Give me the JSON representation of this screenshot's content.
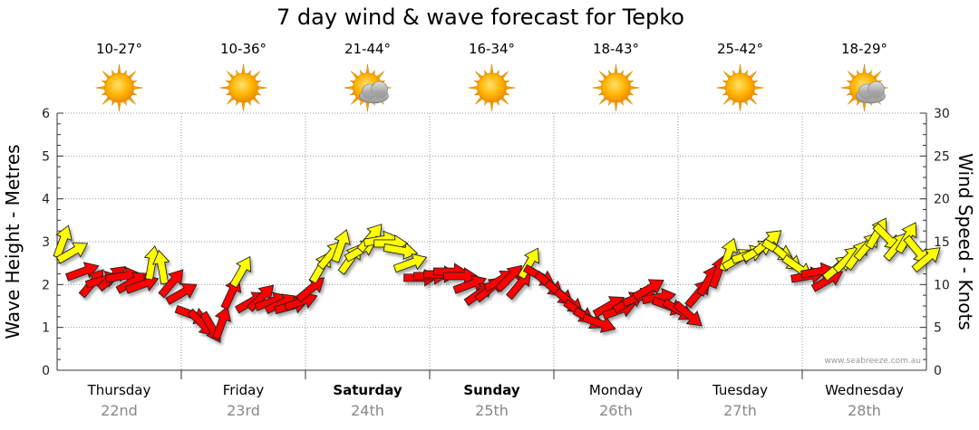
{
  "chart_data": {
    "type": "line",
    "title": "7 day wind & wave forecast for Tepko",
    "ylabel_left": "Wave Height - Metres",
    "ylabel_right": "Wind Speed - Knots",
    "ylim_left": [
      0,
      6
    ],
    "ylim_right": [
      0,
      30
    ],
    "yticks_left": [
      "0",
      "1",
      "2",
      "3",
      "4",
      "5",
      "6"
    ],
    "yticks_right": [
      "0",
      "5",
      "10",
      "15",
      "20",
      "25",
      "30"
    ],
    "credit": "www.seabreeze.com.au",
    "days": [
      {
        "name": "Thursday",
        "date": "22nd",
        "temp": "10-27°",
        "weather": "sunny",
        "bold": false
      },
      {
        "name": "Friday",
        "date": "23rd",
        "temp": "10-36°",
        "weather": "sunny",
        "bold": false
      },
      {
        "name": "Saturday",
        "date": "24th",
        "temp": "21-44°",
        "weather": "partly-cloudy",
        "bold": true
      },
      {
        "name": "Sunday",
        "date": "25th",
        "temp": "16-34°",
        "weather": "sunny",
        "bold": true
      },
      {
        "name": "Monday",
        "date": "26th",
        "temp": "18-43°",
        "weather": "sunny",
        "bold": false
      },
      {
        "name": "Tuesday",
        "date": "27th",
        "temp": "25-42°",
        "weather": "sunny",
        "bold": false
      },
      {
        "name": "Wednesday",
        "date": "28th",
        "temp": "18-29°",
        "weather": "partly-cloudy",
        "bold": false
      }
    ],
    "wind_series": {
      "name": "Wind Speed",
      "unit": "knots",
      "points": [
        {
          "day": 0.0,
          "knots": 15.0,
          "dir": 20,
          "color": "yellow"
        },
        {
          "day": 0.08,
          "knots": 13.8,
          "dir": 60,
          "color": "yellow"
        },
        {
          "day": 0.16,
          "knots": 11.5,
          "dir": 70,
          "color": "red"
        },
        {
          "day": 0.24,
          "knots": 10.2,
          "dir": 40,
          "color": "red"
        },
        {
          "day": 0.32,
          "knots": 10.5,
          "dir": 75,
          "color": "red"
        },
        {
          "day": 0.4,
          "knots": 10.8,
          "dir": 50,
          "color": "red"
        },
        {
          "day": 0.48,
          "knots": 11.0,
          "dir": 80,
          "color": "red"
        },
        {
          "day": 0.56,
          "knots": 10.3,
          "dir": 60,
          "color": "red"
        },
        {
          "day": 0.64,
          "knots": 10.0,
          "dir": 70,
          "color": "red"
        },
        {
          "day": 0.72,
          "knots": 12.5,
          "dir": 10,
          "color": "yellow"
        },
        {
          "day": 0.8,
          "knots": 12.0,
          "dir": 350,
          "color": "yellow"
        },
        {
          "day": 0.88,
          "knots": 10.2,
          "dir": 40,
          "color": "red"
        },
        {
          "day": 0.96,
          "knots": 9.0,
          "dir": 60,
          "color": "red"
        },
        {
          "day": 1.04,
          "knots": 6.5,
          "dir": 110,
          "color": "red"
        },
        {
          "day": 1.12,
          "knots": 5.5,
          "dir": 135,
          "color": "red"
        },
        {
          "day": 1.2,
          "knots": 5.0,
          "dir": 150,
          "color": "red"
        },
        {
          "day": 1.28,
          "knots": 5.5,
          "dir": 20,
          "color": "red"
        },
        {
          "day": 1.36,
          "knots": 9.0,
          "dir": 25,
          "color": "red"
        },
        {
          "day": 1.44,
          "knots": 11.5,
          "dir": 30,
          "color": "yellow"
        },
        {
          "day": 1.52,
          "knots": 8.0,
          "dir": 60,
          "color": "red"
        },
        {
          "day": 1.6,
          "knots": 8.5,
          "dir": 45,
          "color": "red"
        },
        {
          "day": 1.68,
          "knots": 8.0,
          "dir": 70,
          "color": "red"
        },
        {
          "day": 1.76,
          "knots": 7.8,
          "dir": 65,
          "color": "red"
        },
        {
          "day": 1.84,
          "knots": 7.5,
          "dir": 75,
          "color": "red"
        },
        {
          "day": 1.92,
          "knots": 8.0,
          "dir": 70,
          "color": "red"
        },
        {
          "day": 2.0,
          "knots": 9.5,
          "dir": 50,
          "color": "red"
        },
        {
          "day": 2.08,
          "knots": 12.0,
          "dir": 30,
          "color": "yellow"
        },
        {
          "day": 2.16,
          "knots": 13.5,
          "dir": 40,
          "color": "yellow"
        },
        {
          "day": 2.24,
          "knots": 14.5,
          "dir": 20,
          "color": "yellow"
        },
        {
          "day": 2.32,
          "knots": 13.0,
          "dir": 35,
          "color": "yellow"
        },
        {
          "day": 2.4,
          "knots": 14.0,
          "dir": 60,
          "color": "yellow"
        },
        {
          "day": 2.48,
          "knots": 15.5,
          "dir": 40,
          "color": "yellow"
        },
        {
          "day": 2.56,
          "knots": 15.2,
          "dir": 80,
          "color": "yellow"
        },
        {
          "day": 2.64,
          "knots": 14.8,
          "dir": 90,
          "color": "yellow"
        },
        {
          "day": 2.72,
          "knots": 14.0,
          "dir": 100,
          "color": "yellow"
        },
        {
          "day": 2.8,
          "knots": 12.5,
          "dir": 70,
          "color": "yellow"
        },
        {
          "day": 2.88,
          "knots": 10.8,
          "dir": 90,
          "color": "red"
        },
        {
          "day": 2.96,
          "knots": 11.0,
          "dir": 90,
          "color": "red"
        },
        {
          "day": 3.04,
          "knots": 11.2,
          "dir": 90,
          "color": "red"
        },
        {
          "day": 3.12,
          "knots": 11.5,
          "dir": 90,
          "color": "red"
        },
        {
          "day": 3.2,
          "knots": 11.0,
          "dir": 90,
          "color": "red"
        },
        {
          "day": 3.28,
          "knots": 10.0,
          "dir": 70,
          "color": "red"
        },
        {
          "day": 3.36,
          "knots": 9.0,
          "dir": 55,
          "color": "red"
        },
        {
          "day": 3.44,
          "knots": 9.5,
          "dir": 50,
          "color": "red"
        },
        {
          "day": 3.52,
          "knots": 10.5,
          "dir": 60,
          "color": "red"
        },
        {
          "day": 3.6,
          "knots": 10.8,
          "dir": 45,
          "color": "red"
        },
        {
          "day": 3.68,
          "knots": 10.0,
          "dir": 40,
          "color": "red"
        },
        {
          "day": 3.76,
          "knots": 12.5,
          "dir": 30,
          "color": "yellow"
        },
        {
          "day": 3.84,
          "knots": 11.0,
          "dir": 120,
          "color": "red"
        },
        {
          "day": 3.92,
          "knots": 10.0,
          "dir": 130,
          "color": "red"
        },
        {
          "day": 4.0,
          "knots": 9.0,
          "dir": 130,
          "color": "red"
        },
        {
          "day": 4.08,
          "knots": 8.0,
          "dir": 130,
          "color": "red"
        },
        {
          "day": 4.16,
          "knots": 6.8,
          "dir": 125,
          "color": "red"
        },
        {
          "day": 4.24,
          "knots": 6.0,
          "dir": 120,
          "color": "red"
        },
        {
          "day": 4.32,
          "knots": 5.5,
          "dir": 110,
          "color": "red"
        },
        {
          "day": 4.4,
          "knots": 7.5,
          "dir": 60,
          "color": "red"
        },
        {
          "day": 4.48,
          "knots": 7.0,
          "dir": 70,
          "color": "red"
        },
        {
          "day": 4.56,
          "knots": 8.0,
          "dir": 60,
          "color": "red"
        },
        {
          "day": 4.64,
          "knots": 8.5,
          "dir": 70,
          "color": "red"
        },
        {
          "day": 4.72,
          "knots": 9.5,
          "dir": 60,
          "color": "red"
        },
        {
          "day": 4.8,
          "knots": 8.5,
          "dir": 80,
          "color": "red"
        },
        {
          "day": 4.88,
          "knots": 7.5,
          "dir": 110,
          "color": "red"
        },
        {
          "day": 4.96,
          "knots": 7.0,
          "dir": 120,
          "color": "red"
        },
        {
          "day": 5.04,
          "knots": 6.5,
          "dir": 130,
          "color": "red"
        },
        {
          "day": 5.12,
          "knots": 9.0,
          "dir": 40,
          "color": "red"
        },
        {
          "day": 5.2,
          "knots": 10.5,
          "dir": 30,
          "color": "red"
        },
        {
          "day": 5.28,
          "knots": 11.5,
          "dir": 20,
          "color": "red"
        },
        {
          "day": 5.36,
          "knots": 13.5,
          "dir": 20,
          "color": "yellow"
        },
        {
          "day": 5.44,
          "knots": 13.0,
          "dir": 60,
          "color": "yellow"
        },
        {
          "day": 5.52,
          "knots": 13.5,
          "dir": 70,
          "color": "yellow"
        },
        {
          "day": 5.6,
          "knots": 14.0,
          "dir": 60,
          "color": "yellow"
        },
        {
          "day": 5.68,
          "knots": 15.0,
          "dir": 50,
          "color": "yellow"
        },
        {
          "day": 5.76,
          "knots": 14.0,
          "dir": 120,
          "color": "yellow"
        },
        {
          "day": 5.84,
          "knots": 13.0,
          "dir": 130,
          "color": "yellow"
        },
        {
          "day": 5.92,
          "knots": 12.0,
          "dir": 125,
          "color": "yellow"
        },
        {
          "day": 6.0,
          "knots": 11.0,
          "dir": 80,
          "color": "red"
        },
        {
          "day": 6.08,
          "knots": 11.5,
          "dir": 80,
          "color": "red"
        },
        {
          "day": 6.16,
          "knots": 10.5,
          "dir": 60,
          "color": "red"
        },
        {
          "day": 6.24,
          "knots": 12.0,
          "dir": 50,
          "color": "yellow"
        },
        {
          "day": 6.32,
          "knots": 13.0,
          "dir": 45,
          "color": "yellow"
        },
        {
          "day": 6.4,
          "knots": 13.5,
          "dir": 35,
          "color": "yellow"
        },
        {
          "day": 6.48,
          "knots": 14.5,
          "dir": 40,
          "color": "yellow"
        },
        {
          "day": 6.56,
          "knots": 16.0,
          "dir": 30,
          "color": "yellow"
        },
        {
          "day": 6.64,
          "knots": 15.5,
          "dir": 135,
          "color": "yellow"
        },
        {
          "day": 6.72,
          "knots": 14.5,
          "dir": 40,
          "color": "yellow"
        },
        {
          "day": 6.8,
          "knots": 15.5,
          "dir": 30,
          "color": "yellow"
        },
        {
          "day": 6.88,
          "knots": 14.0,
          "dir": 140,
          "color": "yellow"
        },
        {
          "day": 6.96,
          "knots": 13.0,
          "dir": 50,
          "color": "yellow"
        }
      ]
    },
    "colors": {
      "red": "#ff0000",
      "yellow": "#ffff00",
      "outline": "#222222",
      "sun": "#ffb000"
    }
  }
}
